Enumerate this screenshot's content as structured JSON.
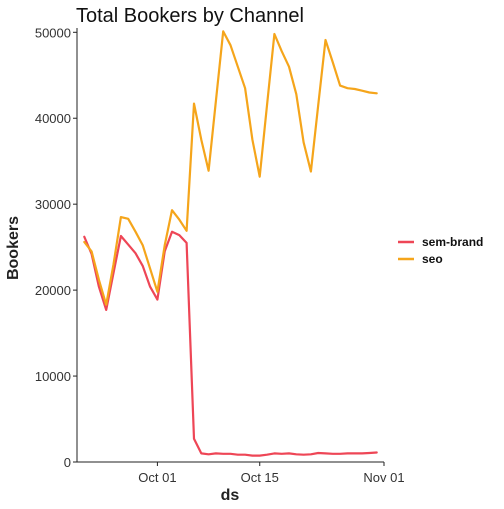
{
  "chart_data": {
    "type": "line",
    "title": "Total Bookers by Channel",
    "xlabel": "ds",
    "ylabel": "Bookers",
    "x_ticks": [
      "Oct 01",
      "Oct 15",
      "Nov 01"
    ],
    "x_tick_positions": [
      0,
      14,
      31
    ],
    "y_ticks": [
      0,
      10000,
      20000,
      30000,
      40000,
      50000
    ],
    "ylim": [
      0,
      50500
    ],
    "xlim": [
      -11,
      31
    ],
    "grid": false,
    "legend_position": "right",
    "x": [
      -10,
      -9,
      -8,
      -7,
      -6,
      -5,
      -4,
      -3,
      -2,
      -1,
      0,
      1,
      2,
      3,
      4,
      5,
      6,
      7,
      8,
      9,
      10,
      11,
      12,
      13,
      14,
      15,
      16,
      17,
      18,
      19,
      20,
      21,
      22,
      23,
      24,
      25,
      26,
      27,
      28,
      29,
      30
    ],
    "series": [
      {
        "name": "sem-brand",
        "color": "#ee4656",
        "values": [
          26200,
          24200,
          20400,
          17700,
          22000,
          26300,
          25300,
          24300,
          22800,
          20400,
          18900,
          24500,
          26800,
          26400,
          25500,
          2700,
          1000,
          900,
          1000,
          950,
          950,
          850,
          850,
          750,
          750,
          850,
          1000,
          950,
          1000,
          900,
          850,
          900,
          1050,
          1000,
          950,
          950,
          1000,
          1000,
          1000,
          1050,
          1100
        ]
      },
      {
        "name": "seo",
        "color": "#f5a51b",
        "values": [
          25600,
          24500,
          21200,
          18300,
          23000,
          28500,
          28300,
          26800,
          25200,
          22500,
          19800,
          25200,
          29300,
          28200,
          26900,
          41700,
          37500,
          33900,
          42000,
          50100,
          48500,
          46000,
          43500,
          37500,
          33200,
          41500,
          49800,
          47800,
          46000,
          42800,
          37200,
          33800,
          41500,
          49100,
          46500,
          43800,
          43500,
          43400,
          43200,
          43000,
          42900
        ]
      }
    ]
  }
}
